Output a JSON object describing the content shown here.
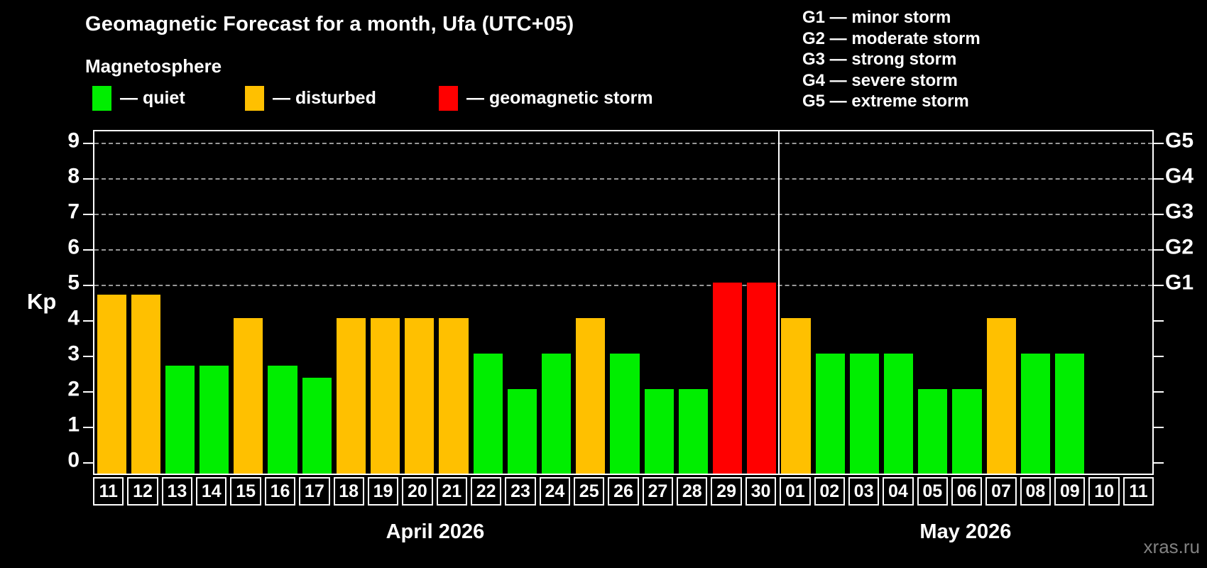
{
  "title": "Geomagnetic Forecast for a month, Ufa (UTC+05)",
  "subtitle": "Magnetosphere",
  "legend": {
    "items": [
      {
        "key": "quiet",
        "label": "— quiet",
        "color": "#00ee00"
      },
      {
        "key": "disturbed",
        "label": "— disturbed",
        "color": "#ffc000"
      },
      {
        "key": "storm",
        "label": "— geomagnetic storm",
        "color": "#ff0000"
      }
    ]
  },
  "storm_scale": [
    "G1 — minor storm",
    "G2 — moderate storm",
    "G3 — strong storm",
    "G4 — severe storm",
    "G5 — extreme storm"
  ],
  "axis": {
    "kp_label": "Kp"
  },
  "watermark": "xras.ru",
  "chart_data": {
    "type": "bar",
    "title": "Geomagnetic Forecast for a month, Ufa (UTC+05)",
    "ylabel": "Kp",
    "ylim": [
      -0.38,
      9.34
    ],
    "y_ticks": [
      0,
      1,
      2,
      3,
      4,
      5,
      6,
      7,
      8,
      9
    ],
    "grid_levels": [
      5,
      6,
      7,
      8,
      9
    ],
    "grid_style": "horizontal dashed gray at Kp 5-9 only",
    "right_axis": [
      {
        "kp": 5,
        "label": "G1"
      },
      {
        "kp": 6,
        "label": "G2"
      },
      {
        "kp": 7,
        "label": "G3"
      },
      {
        "kp": 8,
        "label": "G4"
      },
      {
        "kp": 9,
        "label": "G5"
      }
    ],
    "condition_colors": {
      "quiet": "#00ee00",
      "disturbed": "#ffc000",
      "storm": "#ff0000"
    },
    "months": [
      {
        "label": "April 2026",
        "days": [
          {
            "day": "11",
            "kp": 4.67,
            "condition": "disturbed"
          },
          {
            "day": "12",
            "kp": 4.67,
            "condition": "disturbed"
          },
          {
            "day": "13",
            "kp": 2.67,
            "condition": "quiet"
          },
          {
            "day": "14",
            "kp": 2.67,
            "condition": "quiet"
          },
          {
            "day": "15",
            "kp": 4.0,
            "condition": "disturbed"
          },
          {
            "day": "16",
            "kp": 2.67,
            "condition": "quiet"
          },
          {
            "day": "17",
            "kp": 2.33,
            "condition": "quiet"
          },
          {
            "day": "18",
            "kp": 4.0,
            "condition": "disturbed"
          },
          {
            "day": "19",
            "kp": 4.0,
            "condition": "disturbed"
          },
          {
            "day": "20",
            "kp": 4.0,
            "condition": "disturbed"
          },
          {
            "day": "21",
            "kp": 4.0,
            "condition": "disturbed"
          },
          {
            "day": "22",
            "kp": 3.0,
            "condition": "quiet"
          },
          {
            "day": "23",
            "kp": 2.0,
            "condition": "quiet"
          },
          {
            "day": "24",
            "kp": 3.0,
            "condition": "quiet"
          },
          {
            "day": "25",
            "kp": 4.0,
            "condition": "disturbed"
          },
          {
            "day": "26",
            "kp": 3.0,
            "condition": "quiet"
          },
          {
            "day": "27",
            "kp": 2.0,
            "condition": "quiet"
          },
          {
            "day": "28",
            "kp": 2.0,
            "condition": "quiet"
          },
          {
            "day": "29",
            "kp": 5.0,
            "condition": "storm"
          },
          {
            "day": "30",
            "kp": 5.0,
            "condition": "storm"
          }
        ]
      },
      {
        "label": "May 2026",
        "days": [
          {
            "day": "01",
            "kp": 4.0,
            "condition": "disturbed"
          },
          {
            "day": "02",
            "kp": 3.0,
            "condition": "quiet"
          },
          {
            "day": "03",
            "kp": 3.0,
            "condition": "quiet"
          },
          {
            "day": "04",
            "kp": 3.0,
            "condition": "quiet"
          },
          {
            "day": "05",
            "kp": 2.0,
            "condition": "quiet"
          },
          {
            "day": "06",
            "kp": 2.0,
            "condition": "quiet"
          },
          {
            "day": "07",
            "kp": 4.0,
            "condition": "disturbed"
          },
          {
            "day": "08",
            "kp": 3.0,
            "condition": "quiet"
          },
          {
            "day": "09",
            "kp": 3.0,
            "condition": "quiet"
          },
          {
            "day": "10",
            "kp": null,
            "condition": null
          },
          {
            "day": "11",
            "kp": null,
            "condition": null
          }
        ]
      }
    ]
  }
}
